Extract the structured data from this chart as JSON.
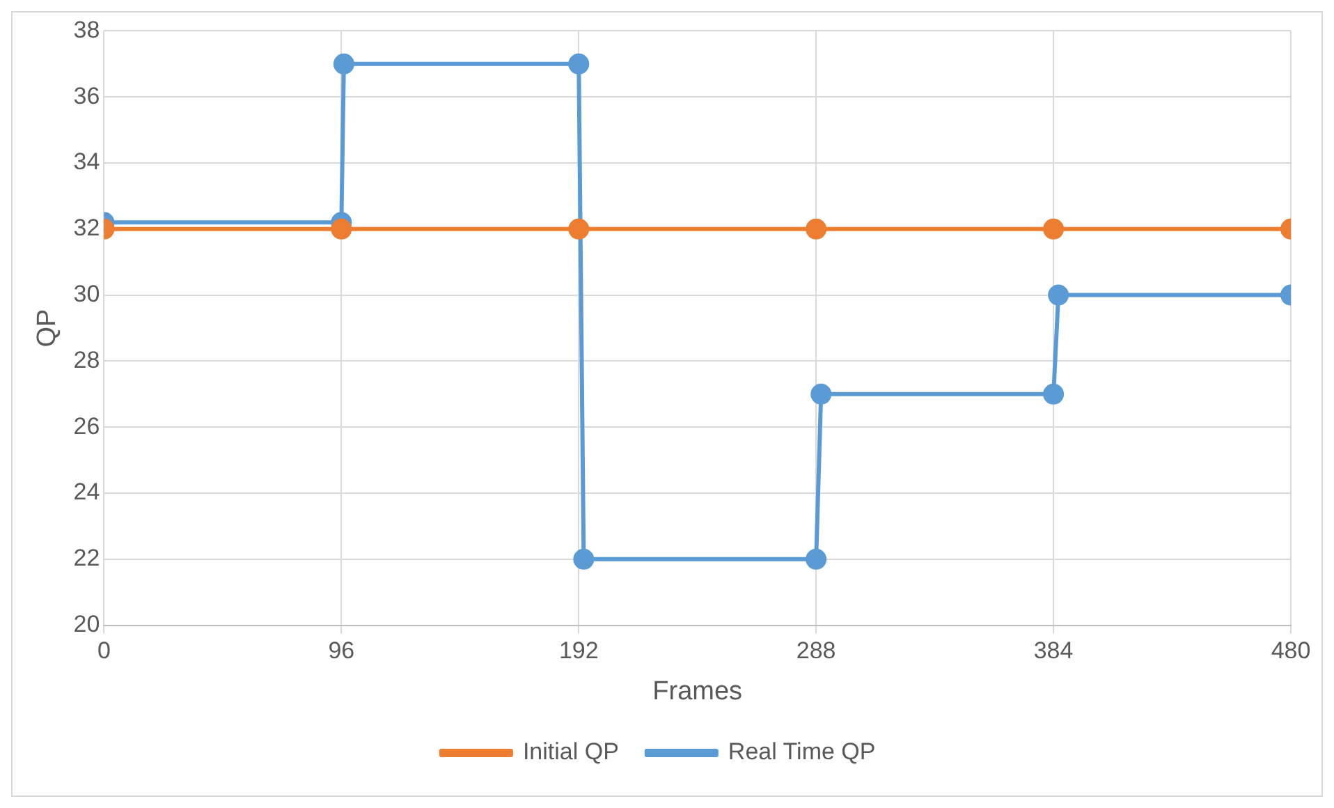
{
  "chart_data": {
    "type": "line",
    "xlabel": "Frames",
    "ylabel": "QP",
    "series": [
      {
        "name": "Real Time QP",
        "color": "#5b9bd5",
        "x": [
          0,
          96,
          97,
          192,
          194,
          288,
          290,
          384,
          386,
          480
        ],
        "values": [
          32.2,
          32.2,
          37,
          37,
          22,
          22,
          27,
          27,
          30,
          30
        ]
      },
      {
        "name": "Initial QP",
        "color": "#ed7d31",
        "x": [
          0,
          96,
          192,
          288,
          384,
          480
        ],
        "values": [
          32,
          32,
          32,
          32,
          32,
          32
        ]
      }
    ],
    "xlim": [
      0,
      480
    ],
    "xticks": [
      0,
      96,
      192,
      288,
      384,
      480
    ],
    "ylim": [
      20,
      38
    ],
    "yticks": [
      20,
      22,
      24,
      26,
      28,
      30,
      32,
      34,
      36,
      38
    ],
    "grid": true,
    "legend": "bottom",
    "marker": "circle",
    "line_style": "solid"
  }
}
